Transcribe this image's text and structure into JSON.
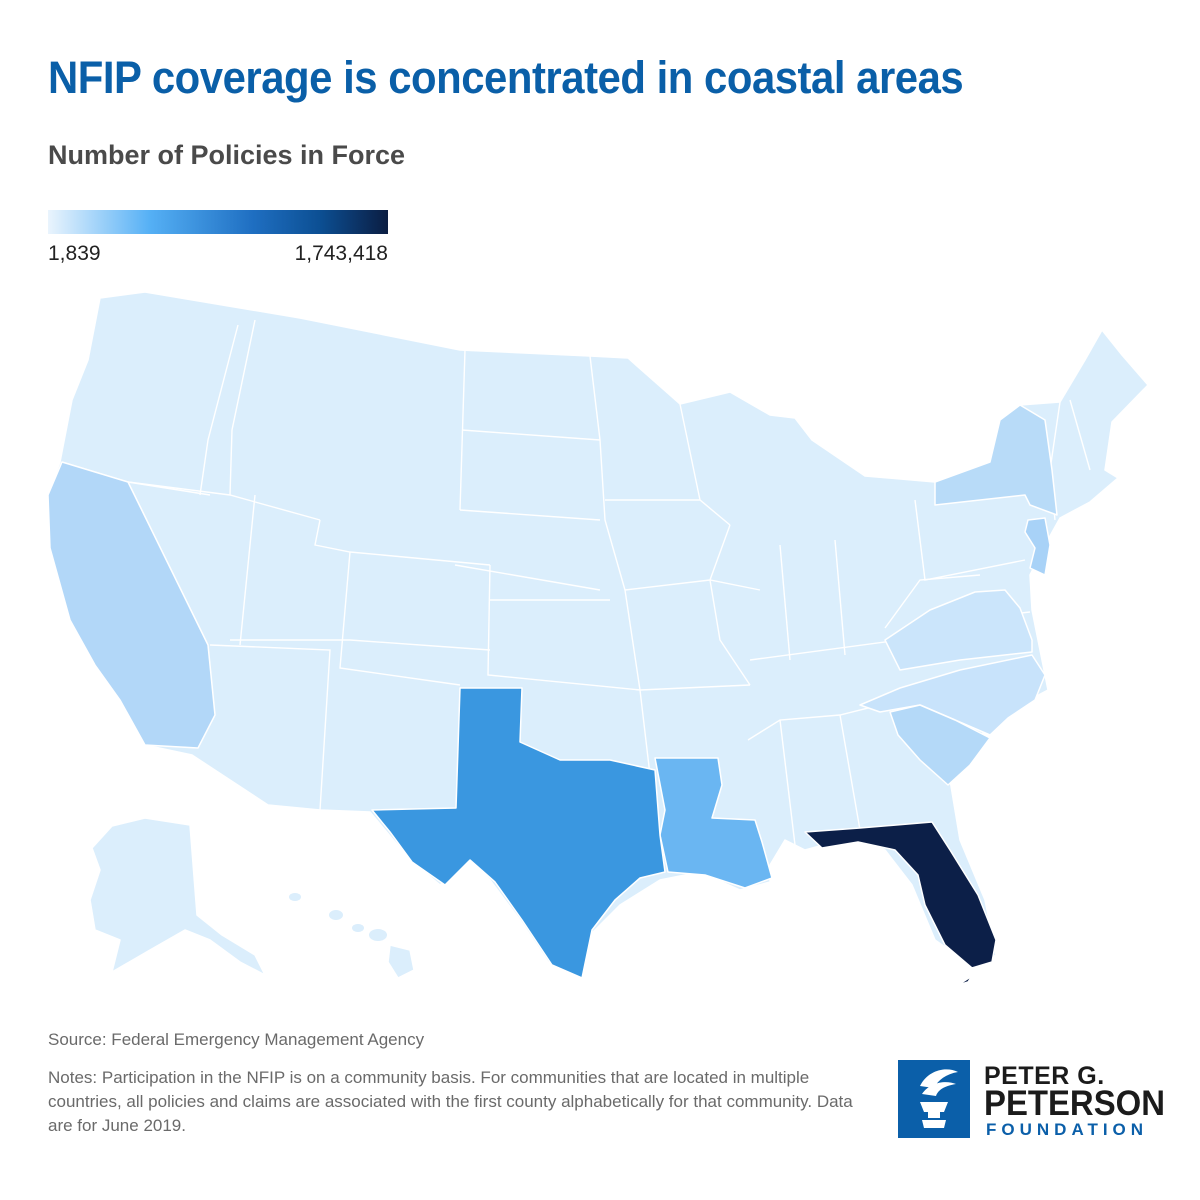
{
  "title": "NFIP coverage is concentrated in coastal areas",
  "subtitle": "Number of Policies in Force",
  "legend": {
    "min_label": "1,839",
    "max_label": "1,743,418",
    "min_value": 1839,
    "max_value": 1743418
  },
  "colors": {
    "title": "#0a5fa8",
    "base_state": "#dbeefc",
    "light_tier": "#c4e1fb",
    "mid_light_tier": "#b2d7f8",
    "louisiana": "#6ab6f2",
    "texas": "#3a97e0",
    "florida": "#0c1f48",
    "logo_blue": "#0b5fa9"
  },
  "map": {
    "type": "choropleth",
    "region": "United States",
    "highlighted_states": [
      {
        "state": "Florida",
        "tier": "highest"
      },
      {
        "state": "Texas",
        "tier": "high"
      },
      {
        "state": "Louisiana",
        "tier": "medium-high"
      },
      {
        "state": "California",
        "tier": "medium"
      },
      {
        "state": "New York",
        "tier": "medium"
      },
      {
        "state": "New Jersey",
        "tier": "medium"
      },
      {
        "state": "South Carolina",
        "tier": "medium"
      },
      {
        "state": "North Carolina",
        "tier": "low-medium"
      },
      {
        "state": "Virginia",
        "tier": "low-medium"
      }
    ]
  },
  "source": "Source: Federal Emergency Management Agency",
  "notes": "Notes: Participation in the NFIP is on a community basis. For communities that are located in multiple countries, all policies and claims are associated with the first county alphabetically for that community. Data are for June 2019.",
  "logo": {
    "line1": "PETER G.",
    "line2": "PETERSON",
    "line3": "FOUNDATION"
  }
}
